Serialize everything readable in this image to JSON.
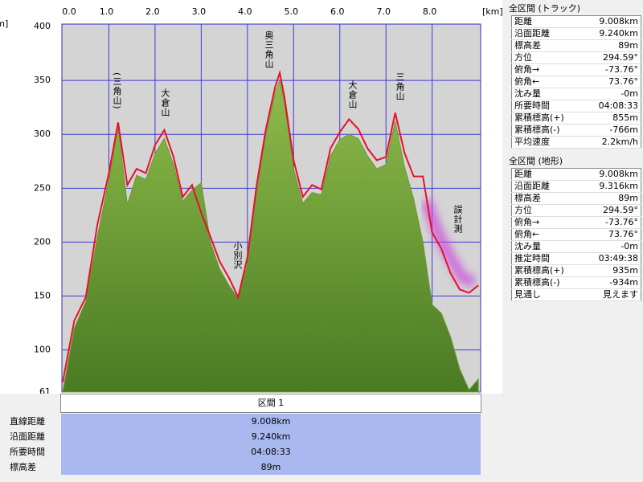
{
  "chart_data": {
    "type": "area",
    "xlabel": "[km]",
    "ylabel": "[m]",
    "x": [
      0,
      0.25,
      0.5,
      0.75,
      1.0,
      1.2,
      1.4,
      1.6,
      1.8,
      2.0,
      2.2,
      2.4,
      2.6,
      2.8,
      3.0,
      3.2,
      3.4,
      3.6,
      3.8,
      4.0,
      4.2,
      4.4,
      4.6,
      4.7,
      4.8,
      5.0,
      5.2,
      5.4,
      5.6,
      5.8,
      6.0,
      6.2,
      6.4,
      6.6,
      6.8,
      7.0,
      7.2,
      7.4,
      7.6,
      7.8,
      8.0,
      8.2,
      8.4,
      8.6,
      8.8,
      9.0
    ],
    "series": [
      {
        "color": "#6a9a30",
        "fill": true,
        "values": [
          61,
          120,
          145,
          205,
          258,
          306,
          235,
          262,
          258,
          282,
          296,
          272,
          238,
          248,
          255,
          200,
          175,
          160,
          148,
          180,
          245,
          300,
          338,
          350,
          330,
          268,
          236,
          246,
          244,
          280,
          295,
          300,
          296,
          280,
          268,
          272,
          312,
          270,
          240,
          200,
          142,
          134,
          112,
          82,
          63,
          73
        ]
      },
      {
        "color": "#e8102a",
        "fill": false,
        "values": [
          70,
          127,
          149,
          216,
          264,
          311,
          253,
          268,
          264,
          290,
          304,
          279,
          242,
          253,
          227,
          205,
          182,
          167,
          149,
          186,
          253,
          305,
          344,
          357,
          335,
          276,
          242,
          253,
          249,
          287,
          302,
          314,
          305,
          287,
          276,
          279,
          320,
          283,
          261,
          261,
          209,
          194,
          171,
          156,
          153,
          160
        ]
      }
    ],
    "xlim": [
      0,
      9.05
    ],
    "xticks": [
      {
        "value": 0,
        "label": "0.0"
      },
      {
        "value": 1,
        "label": "1.0"
      },
      {
        "value": 2,
        "label": "2.0"
      },
      {
        "value": 3,
        "label": "3.0"
      },
      {
        "value": 4,
        "label": "4.0"
      },
      {
        "value": 5,
        "label": "5.0"
      },
      {
        "value": 6,
        "label": "6.0"
      },
      {
        "value": 7,
        "label": "7.0"
      },
      {
        "value": 8,
        "label": "8.0"
      }
    ],
    "ylim": [
      61,
      400
    ],
    "yticks": [
      61,
      100,
      150,
      200,
      250,
      300,
      350,
      400
    ],
    "grid": true,
    "annotations": [
      "(三角山)",
      "大倉山",
      "奥三角山",
      "小別沢",
      "大倉山",
      "三角山",
      "誤計測"
    ]
  },
  "section": {
    "title": "区間 1",
    "rows": [
      [
        "直線距離",
        "9.008km"
      ],
      [
        "沿面距離",
        "9.240km"
      ],
      [
        "所要時間",
        "04:08:33"
      ],
      [
        "標高差",
        "89m"
      ]
    ]
  },
  "track_panel": {
    "title": "全区間 (トラック)",
    "rows": [
      [
        "距離",
        "9.008km"
      ],
      [
        "沿面距離",
        "9.240km"
      ],
      [
        "標高差",
        "89m"
      ],
      [
        "方位",
        "294.59°"
      ],
      [
        "俯角→",
        "-73.76°"
      ],
      [
        "俯角←",
        "73.76°"
      ],
      [
        "沈み量",
        "-0m"
      ],
      [
        "所要時間",
        "04:08:33"
      ],
      [
        "累積標高(+)",
        "855m"
      ],
      [
        "累積標高(-)",
        "-766m"
      ],
      [
        "平均速度",
        "2.2km/h"
      ]
    ]
  },
  "terrain_panel": {
    "title": "全区間 (地形)",
    "rows": [
      [
        "距離",
        "9.008km"
      ],
      [
        "沿面距離",
        "9.316km"
      ],
      [
        "標高差",
        "89m"
      ],
      [
        "方位",
        "294.59°"
      ],
      [
        "俯角→",
        "-73.76°"
      ],
      [
        "俯角←",
        "73.76°"
      ],
      [
        "沈み量",
        "-0m"
      ],
      [
        "推定時間",
        "03:49:38"
      ],
      [
        "累積標高(+)",
        "935m"
      ],
      [
        "累積標高(-)",
        "-934m"
      ],
      [
        "見通し",
        "見えます"
      ]
    ]
  }
}
